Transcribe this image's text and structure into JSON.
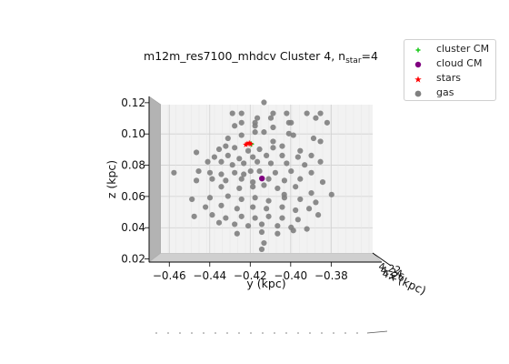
{
  "chart_data": {
    "type": "scatter",
    "title_main": "m12m_res7100_mhdcv Cluster 4, n",
    "title_sub": "star",
    "title_tail": "=4",
    "xlabel": "y (kpc)",
    "ylabel": "z (kpc)",
    "depth_label": "x (kpc)",
    "depth_ticks": [
      "4.22",
      "4.24",
      "4.26"
    ],
    "xlim": [
      -0.47,
      -0.355
    ],
    "ylim": [
      0.018,
      0.124
    ],
    "xticks": [
      -0.46,
      -0.44,
      -0.42,
      -0.4,
      -0.38
    ],
    "xtick_labels": [
      "−0.46",
      "−0.44",
      "−0.42",
      "−0.40",
      "−0.38"
    ],
    "yticks": [
      0.02,
      0.04,
      0.06,
      0.08,
      0.1,
      0.12
    ],
    "ytick_labels": [
      "0.02",
      "0.04",
      "0.06",
      "0.08",
      "0.10",
      "0.12"
    ],
    "grid": true,
    "legend_position": "top-right",
    "colors": {
      "cluster_cm": "#22cc22",
      "cloud_cm": "#800080",
      "stars": "#ff0000",
      "gas": "#808080"
    },
    "series": [
      {
        "name": "cluster CM",
        "marker": "cross",
        "color": "#22cc22",
        "points": [
          [
            -0.4195,
            0.0935
          ]
        ]
      },
      {
        "name": "cloud CM",
        "marker": "circle",
        "color": "#800080",
        "points": [
          [
            -0.4142,
            0.0715
          ]
        ]
      },
      {
        "name": "stars",
        "marker": "star",
        "color": "#ff0000",
        "points": [
          [
            -0.4215,
            0.0938
          ],
          [
            -0.4205,
            0.0942
          ],
          [
            -0.4222,
            0.0931
          ],
          [
            -0.4198,
            0.0936
          ]
        ]
      },
      {
        "name": "gas",
        "marker": "circle",
        "color": "#808080",
        "points": [
          [
            -0.4132,
            0.1202
          ],
          [
            -0.4288,
            0.1132
          ],
          [
            -0.4243,
            0.1132
          ],
          [
            -0.4087,
            0.1132
          ],
          [
            -0.402,
            0.1132
          ],
          [
            -0.392,
            0.1132
          ],
          [
            -0.3853,
            0.1132
          ],
          [
            -0.4165,
            0.1102
          ],
          [
            -0.4098,
            0.1102
          ],
          [
            -0.3876,
            0.1102
          ],
          [
            -0.4243,
            0.1072
          ],
          [
            -0.4176,
            0.1072
          ],
          [
            -0.3998,
            0.1072
          ],
          [
            -0.382,
            0.1072
          ],
          [
            -0.4277,
            0.1052
          ],
          [
            -0.4176,
            0.1052
          ],
          [
            -0.4087,
            0.1042
          ],
          [
            -0.4009,
            0.1002
          ],
          [
            -0.3987,
            0.0992
          ],
          [
            -0.4176,
            0.1012
          ],
          [
            -0.4132,
            0.1012
          ],
          [
            -0.4243,
            0.0992
          ],
          [
            -0.431,
            0.0972
          ],
          [
            -0.3853,
            0.0952
          ],
          [
            -0.3887,
            0.0972
          ],
          [
            -0.4466,
            0.0882
          ],
          [
            -0.4354,
            0.0902
          ],
          [
            -0.4321,
            0.0922
          ],
          [
            -0.4277,
            0.0912
          ],
          [
            -0.421,
            0.0892
          ],
          [
            -0.4154,
            0.0902
          ],
          [
            -0.4087,
            0.0912
          ],
          [
            -0.4042,
            0.0922
          ],
          [
            -0.3953,
            0.0892
          ],
          [
            -0.3898,
            0.0862
          ],
          [
            -0.4377,
            0.0852
          ],
          [
            -0.431,
            0.0862
          ],
          [
            -0.4254,
            0.0842
          ],
          [
            -0.4187,
            0.0852
          ],
          [
            -0.412,
            0.0862
          ],
          [
            -0.4042,
            0.0862
          ],
          [
            -0.3964,
            0.0852
          ],
          [
            -0.441,
            0.0822
          ],
          [
            -0.4343,
            0.0822
          ],
          [
            -0.4288,
            0.0802
          ],
          [
            -0.4232,
            0.0812
          ],
          [
            -0.4165,
            0.0822
          ],
          [
            -0.4098,
            0.0812
          ],
          [
            -0.402,
            0.0812
          ],
          [
            -0.3931,
            0.0802
          ],
          [
            -0.3853,
            0.0822
          ],
          [
            -0.4577,
            0.0752
          ],
          [
            -0.4455,
            0.0762
          ],
          [
            -0.4399,
            0.0752
          ],
          [
            -0.4343,
            0.0742
          ],
          [
            -0.4277,
            0.0752
          ],
          [
            -0.4232,
            0.0742
          ],
          [
            -0.4154,
            0.0762
          ],
          [
            -0.4076,
            0.0752
          ],
          [
            -0.3998,
            0.0762
          ],
          [
            -0.3898,
            0.0752
          ],
          [
            -0.4466,
            0.0702
          ],
          [
            -0.4388,
            0.0712
          ],
          [
            -0.4321,
            0.0702
          ],
          [
            -0.4243,
            0.0712
          ],
          [
            -0.4187,
            0.0692
          ],
          [
            -0.4109,
            0.0712
          ],
          [
            -0.4031,
            0.0702
          ],
          [
            -0.3953,
            0.0712
          ],
          [
            -0.3842,
            0.0692
          ],
          [
            -0.4343,
            0.0662
          ],
          [
            -0.4254,
            0.0652
          ],
          [
            -0.4187,
            0.0662
          ],
          [
            -0.4132,
            0.0672
          ],
          [
            -0.4065,
            0.0652
          ],
          [
            -0.3976,
            0.0662
          ],
          [
            -0.3898,
            0.0622
          ],
          [
            -0.3798,
            0.0612
          ],
          [
            -0.4488,
            0.0582
          ],
          [
            -0.4399,
            0.0592
          ],
          [
            -0.431,
            0.0602
          ],
          [
            -0.4243,
            0.0582
          ],
          [
            -0.4176,
            0.0592
          ],
          [
            -0.4109,
            0.0572
          ],
          [
            -0.4031,
            0.0592
          ],
          [
            -0.3953,
            0.0582
          ],
          [
            -0.3876,
            0.0562
          ],
          [
            -0.4421,
            0.0532
          ],
          [
            -0.4343,
            0.0542
          ],
          [
            -0.4265,
            0.0522
          ],
          [
            -0.4187,
            0.0532
          ],
          [
            -0.412,
            0.0522
          ],
          [
            -0.4042,
            0.0532
          ],
          [
            -0.3976,
            0.0512
          ],
          [
            -0.3909,
            0.0522
          ],
          [
            -0.3864,
            0.0482
          ],
          [
            -0.4477,
            0.0472
          ],
          [
            -0.4388,
            0.0482
          ],
          [
            -0.4321,
            0.0462
          ],
          [
            -0.4243,
            0.0472
          ],
          [
            -0.4176,
            0.0462
          ],
          [
            -0.4109,
            0.0472
          ],
          [
            -0.4042,
            0.0462
          ],
          [
            -0.3964,
            0.0452
          ],
          [
            -0.4354,
            0.0432
          ],
          [
            -0.4277,
            0.0422
          ],
          [
            -0.421,
            0.0412
          ],
          [
            -0.4143,
            0.0422
          ],
          [
            -0.4065,
            0.0412
          ],
          [
            -0.3998,
            0.0402
          ],
          [
            -0.392,
            0.0392
          ],
          [
            -0.4265,
            0.0362
          ],
          [
            -0.4143,
            0.0372
          ],
          [
            -0.4065,
            0.0362
          ],
          [
            -0.3987,
            0.0382
          ],
          [
            -0.4132,
            0.0302
          ],
          [
            -0.4143,
            0.0262
          ],
          [
            -0.4009,
            0.1072
          ],
          [
            -0.4087,
            0.0952
          ],
          [
            -0.4032,
            0.0612
          ],
          [
            -0.4198,
            0.0762
          ]
        ]
      }
    ]
  }
}
